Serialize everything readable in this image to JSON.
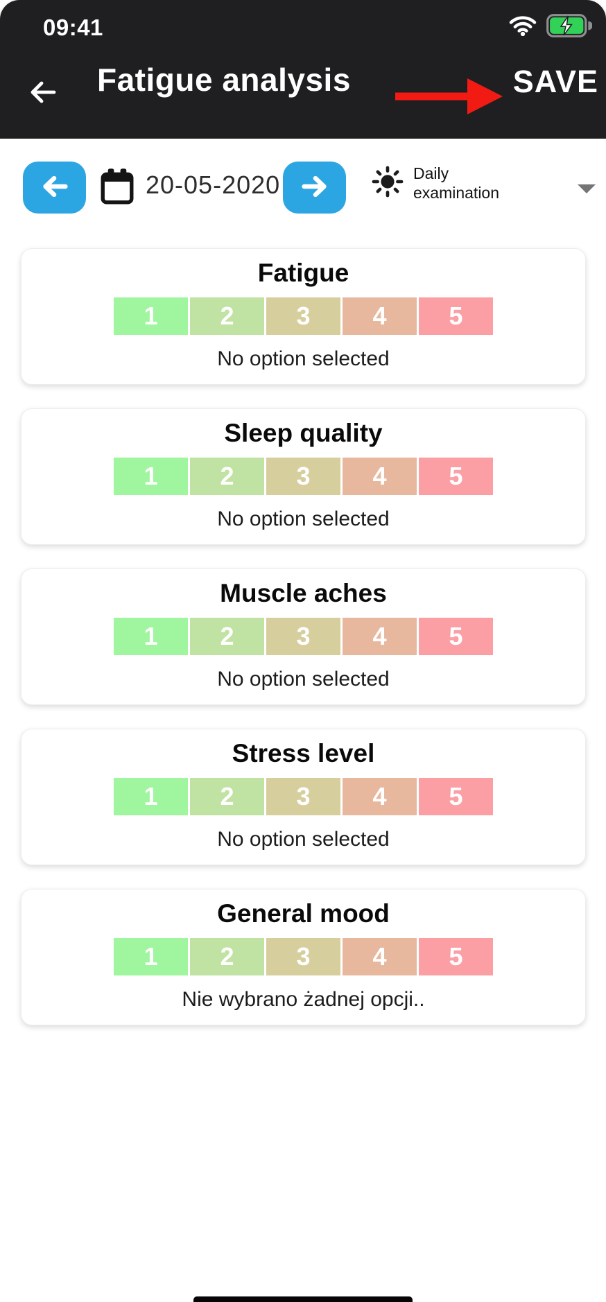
{
  "status_bar": {
    "time": "09:41"
  },
  "header": {
    "title": "Fatigue analysis",
    "save_label": "SAVE"
  },
  "date_bar": {
    "date": "20-05-2020",
    "mode_label_line1": "Daily",
    "mode_label_line2": "examination"
  },
  "scale_options": [
    "1",
    "2",
    "3",
    "4",
    "5"
  ],
  "scale_colors": [
    "#9FF69F",
    "#C0E2A2",
    "#D6CE9C",
    "#E7B89E",
    "#FB9FA5"
  ],
  "cards": [
    {
      "title": "Fatigue",
      "status": "No option selected"
    },
    {
      "title": "Sleep quality",
      "status": "No option selected"
    },
    {
      "title": "Muscle aches",
      "status": "No option selected"
    },
    {
      "title": "Stress level",
      "status": "No option selected"
    },
    {
      "title": "General mood",
      "status": "Nie wybrano żadnej opcji.."
    }
  ],
  "colors": {
    "header_bg": "#1F1F21",
    "accent_blue": "#2CA6E3",
    "annotation_red": "#F21B14",
    "battery_green": "#32D158"
  }
}
